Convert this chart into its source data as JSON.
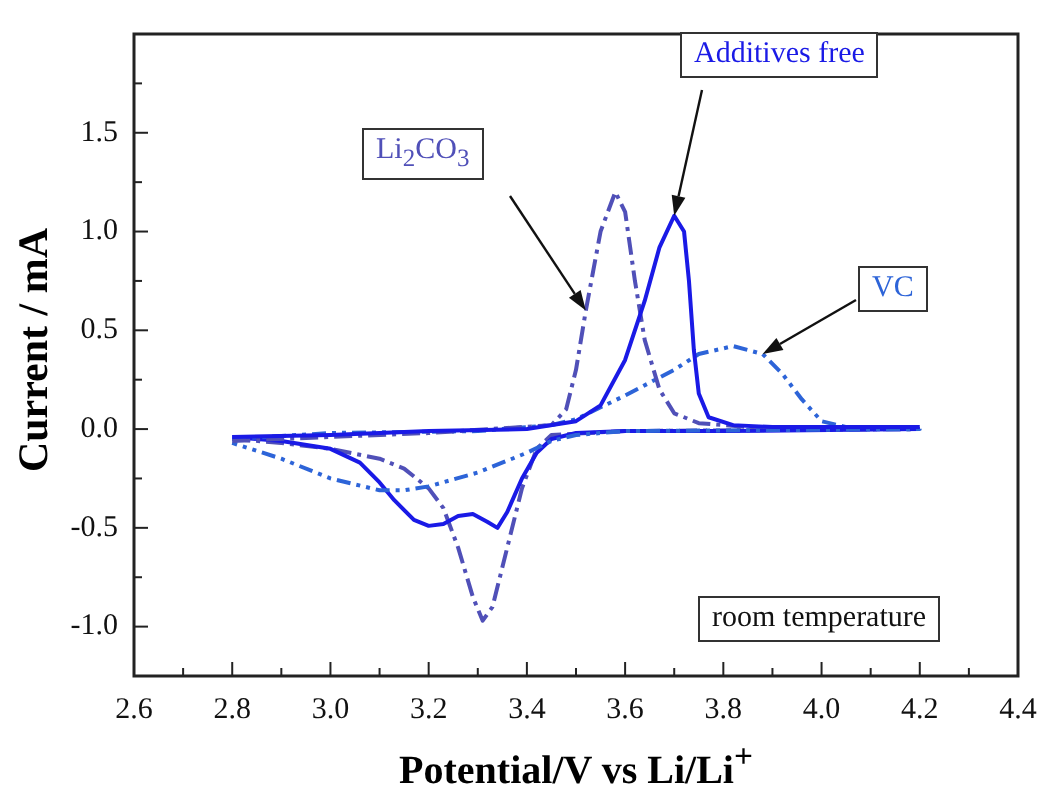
{
  "chart_data": {
    "type": "line",
    "xlabel": "Potential/V vs Li/Li$^{+}$",
    "ylabel": "Current / mA",
    "xlim": [
      2.6,
      4.4
    ],
    "ylim": [
      -1.25,
      2.0
    ],
    "xticks": [
      2.6,
      {
        "value": 2.7,
        "label": null
      },
      2.8,
      {
        "value": 2.9,
        "label": null
      },
      {
        "value": 3,
        "label": "3.0"
      },
      {
        "value": 3.1,
        "label": null
      },
      3.2,
      {
        "value": 3.3,
        "label": null
      },
      3.4,
      {
        "value": 3.5,
        "label": null
      },
      3.6,
      {
        "value": 3.7,
        "label": null
      },
      3.8,
      {
        "value": 3.9,
        "label": null
      },
      {
        "value": 4,
        "label": "4.0"
      },
      {
        "value": 4.1,
        "label": null
      },
      4.2,
      {
        "value": 4.3,
        "label": null
      },
      4.4
    ],
    "yticks": [
      {
        "value": -1,
        "label": "-1.0"
      },
      {
        "value": -0.75,
        "label": null
      },
      -0.5,
      {
        "value": -0.25,
        "label": null
      },
      {
        "value": 0,
        "label": "0.0"
      },
      {
        "value": 0.25,
        "label": null
      },
      0.5,
      {
        "value": 0.75,
        "label": null
      },
      {
        "value": 1,
        "label": "1.0"
      },
      {
        "value": 1.25,
        "label": null
      },
      1.5,
      {
        "value": 1.75,
        "label": null
      }
    ],
    "annotations": [
      "room temperature"
    ],
    "series": [
      {
        "name": "Additives free",
        "color": "#1a1ae6",
        "line_style": "solid",
        "x": [
          2.8,
          3.0,
          3.2,
          3.4,
          3.5,
          3.55,
          3.6,
          3.64,
          3.67,
          3.7,
          3.72,
          3.73,
          3.74,
          3.75,
          3.77,
          3.82,
          3.9,
          4.2
        ],
        "values": [
          -0.04,
          -0.03,
          -0.01,
          0.0,
          0.04,
          0.12,
          0.35,
          0.65,
          0.92,
          1.08,
          1.0,
          0.75,
          0.4,
          0.18,
          0.06,
          0.02,
          0.01,
          0.01
        ]
      },
      {
        "name": "Li$_{2}$CO$_{3}$",
        "color": "#5050b8",
        "line_style": "dashed",
        "x": [
          2.8,
          3.0,
          3.2,
          3.45,
          3.48,
          3.5,
          3.52,
          3.55,
          3.58,
          3.6,
          3.62,
          3.64,
          3.67,
          3.7,
          3.75,
          3.85,
          4.2
        ],
        "values": [
          -0.06,
          -0.04,
          -0.02,
          0.02,
          0.1,
          0.3,
          0.6,
          1.0,
          1.2,
          1.1,
          0.75,
          0.45,
          0.2,
          0.08,
          0.03,
          0.01,
          0.01
        ]
      },
      {
        "name": "VC",
        "color": "#2d64d8",
        "line_style": "dotted",
        "x": [
          2.8,
          3.0,
          3.3,
          3.45,
          3.5,
          3.6,
          3.7,
          3.75,
          3.82,
          3.88,
          3.92,
          3.96,
          4.0,
          4.05,
          4.2,
          4.2,
          3.6,
          3.5,
          3.45,
          3.4,
          3.3,
          3.2,
          3.15,
          3.1,
          3.0,
          2.9,
          2.8
        ],
        "values": [
          -0.05,
          -0.02,
          -0.01,
          0.02,
          0.05,
          0.17,
          0.3,
          0.38,
          0.42,
          0.38,
          0.28,
          0.15,
          0.04,
          0.01,
          0.01,
          0.0,
          -0.01,
          -0.03,
          -0.06,
          -0.12,
          -0.22,
          -0.29,
          -0.31,
          -0.31,
          -0.25,
          -0.15,
          -0.07
        ]
      },
      {
        "color": "#1a1ae6",
        "line_style": "solid",
        "x": [
          2.8,
          2.9,
          3.0,
          3.06,
          3.1,
          3.13,
          3.17,
          3.2,
          3.23,
          3.26,
          3.29,
          3.32,
          3.34,
          3.36,
          3.39,
          3.42,
          3.45,
          3.5,
          3.6,
          3.8,
          4.2
        ],
        "values": [
          -0.04,
          -0.06,
          -0.1,
          -0.17,
          -0.27,
          -0.36,
          -0.46,
          -0.49,
          -0.48,
          -0.44,
          -0.43,
          -0.47,
          -0.5,
          -0.42,
          -0.25,
          -0.12,
          -0.05,
          -0.02,
          -0.01,
          -0.01,
          0.0
        ]
      },
      {
        "color": "#5050b8",
        "line_style": "dashed",
        "x": [
          2.8,
          2.9,
          3.0,
          3.1,
          3.15,
          3.2,
          3.23,
          3.26,
          3.29,
          3.31,
          3.33,
          3.36,
          3.39,
          3.42,
          3.45,
          3.6,
          4.2
        ],
        "values": [
          -0.05,
          -0.07,
          -0.1,
          -0.15,
          -0.2,
          -0.3,
          -0.4,
          -0.6,
          -0.85,
          -0.97,
          -0.9,
          -0.6,
          -0.3,
          -0.1,
          -0.03,
          -0.01,
          0.0
        ]
      }
    ]
  }
}
